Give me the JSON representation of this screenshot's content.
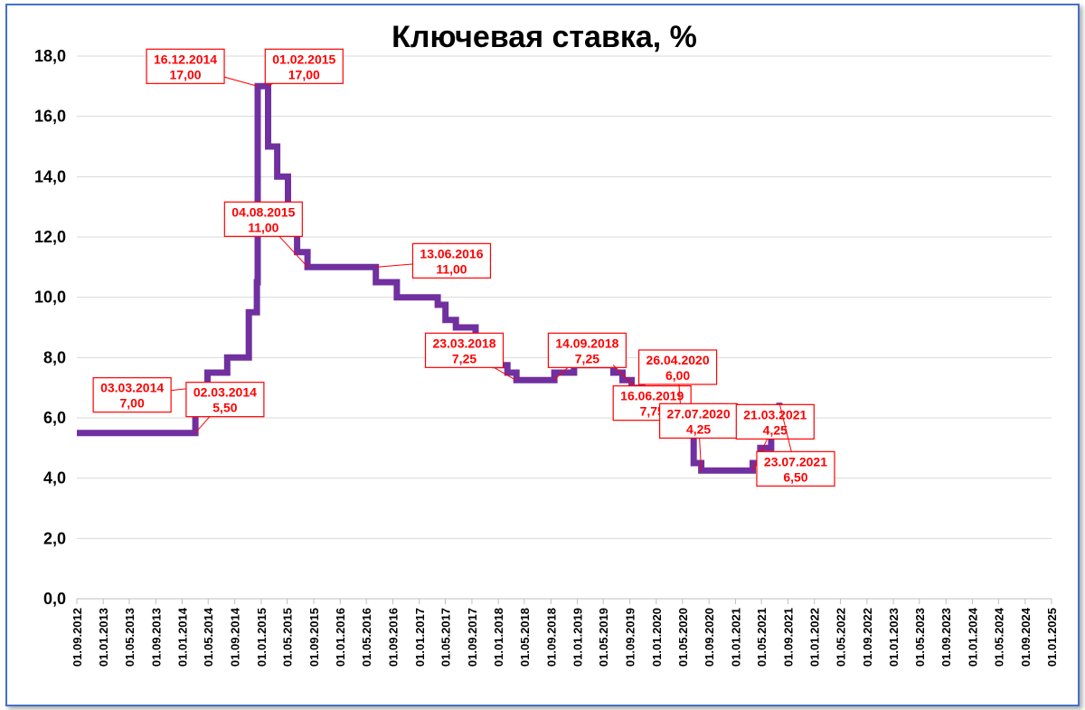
{
  "chart_data": {
    "type": "line",
    "title": "Ключевая ставка, %",
    "line_style": "step",
    "series_color": "#7030a0",
    "annotation_color": "#ff0000",
    "grid": true,
    "legend": "none",
    "ylim": [
      0,
      18
    ],
    "yticks": [
      "0,0",
      "2,0",
      "4,0",
      "6,0",
      "8,0",
      "10,0",
      "12,0",
      "14,0",
      "16,0",
      "18,0"
    ],
    "xlim": [
      "2012-09-01",
      "2025-01-01"
    ],
    "xticks": [
      "01.09.2012",
      "01.01.2013",
      "01.05.2013",
      "01.09.2013",
      "01.01.2014",
      "01.05.2014",
      "01.09.2014",
      "01.01.2015",
      "01.05.2015",
      "01.09.2015",
      "01.01.2016",
      "01.05.2016",
      "01.09.2016",
      "01.01.2017",
      "01.05.2017",
      "01.09.2017",
      "01.01.2018",
      "01.05.2018",
      "01.09.2018",
      "01.01.2019",
      "01.05.2019",
      "01.09.2019",
      "01.01.2020",
      "01.05.2020",
      "01.09.2020",
      "01.01.2021",
      "01.05.2021",
      "01.09.2021",
      "01.01.2022",
      "01.05.2022",
      "01.09.2022",
      "01.01.2023",
      "01.05.2023",
      "01.09.2023",
      "01.01.2024",
      "01.05.2024",
      "01.09.2024",
      "01.01.2025"
    ],
    "series": [
      {
        "points": [
          [
            "2012-09-01",
            5.5
          ],
          [
            "2014-03-03",
            7.0
          ],
          [
            "2014-04-28",
            7.5
          ],
          [
            "2014-07-28",
            8.0
          ],
          [
            "2014-11-05",
            9.5
          ],
          [
            "2014-12-12",
            10.5
          ],
          [
            "2014-12-16",
            17.0
          ],
          [
            "2015-02-02",
            15.0
          ],
          [
            "2015-03-16",
            14.0
          ],
          [
            "2015-05-05",
            12.5
          ],
          [
            "2015-06-16",
            11.5
          ],
          [
            "2015-08-03",
            11.0
          ],
          [
            "2016-06-14",
            10.5
          ],
          [
            "2016-09-19",
            10.0
          ],
          [
            "2017-03-27",
            9.75
          ],
          [
            "2017-05-02",
            9.25
          ],
          [
            "2017-06-19",
            9.0
          ],
          [
            "2017-09-18",
            8.5
          ],
          [
            "2017-10-30",
            8.25
          ],
          [
            "2017-12-18",
            7.75
          ],
          [
            "2018-02-12",
            7.5
          ],
          [
            "2018-03-26",
            7.25
          ],
          [
            "2018-09-17",
            7.5
          ],
          [
            "2018-12-17",
            7.75
          ],
          [
            "2019-06-17",
            7.5
          ],
          [
            "2019-07-29",
            7.25
          ],
          [
            "2019-09-09",
            7.0
          ],
          [
            "2019-10-28",
            6.5
          ],
          [
            "2019-12-16",
            6.25
          ],
          [
            "2020-02-10",
            6.0
          ],
          [
            "2020-04-27",
            5.5
          ],
          [
            "2020-06-22",
            4.5
          ],
          [
            "2020-07-27",
            4.25
          ],
          [
            "2021-03-22",
            4.5
          ],
          [
            "2021-04-26",
            5.0
          ],
          [
            "2021-06-15",
            5.5
          ],
          [
            "2021-07-23",
            6.5
          ]
        ]
      }
    ],
    "annotations": [
      {
        "date_label": "16.12.2014",
        "value_label": "17,00",
        "x": "2014-12-16",
        "y": 17.0
      },
      {
        "date_label": "01.02.2015",
        "value_label": "17,00",
        "x": "2015-02-01",
        "y": 17.0
      },
      {
        "date_label": "03.03.2014",
        "value_label": "7,00",
        "x": "2014-03-03",
        "y": 7.0
      },
      {
        "date_label": "02.03.2014",
        "value_label": "5,50",
        "x": "2014-03-02",
        "y": 5.5
      },
      {
        "date_label": "13.06.2016",
        "value_label": "11,00",
        "x": "2016-06-13",
        "y": 11.0
      },
      {
        "date_label": "04.08.2015",
        "value_label": "11,00",
        "x": "2015-08-04",
        "y": 11.0
      },
      {
        "date_label": "23.03.2018",
        "value_label": "7,25",
        "x": "2018-03-23",
        "y": 7.25
      },
      {
        "date_label": "14.09.2018",
        "value_label": "7,25",
        "x": "2018-09-14",
        "y": 7.25
      },
      {
        "date_label": "16.06.2019",
        "value_label": "7,75",
        "x": "2019-06-16",
        "y": 7.75
      },
      {
        "date_label": "26.04.2020",
        "value_label": "6,00",
        "x": "2020-04-26",
        "y": 6.0
      },
      {
        "date_label": "27.07.2020",
        "value_label": "4,25",
        "x": "2020-07-27",
        "y": 4.25
      },
      {
        "date_label": "21.03.2021",
        "value_label": "4,25",
        "x": "2021-03-21",
        "y": 4.25
      },
      {
        "date_label": "23.07.2021",
        "value_label": "6,50",
        "x": "2021-07-23",
        "y": 6.5
      }
    ]
  }
}
